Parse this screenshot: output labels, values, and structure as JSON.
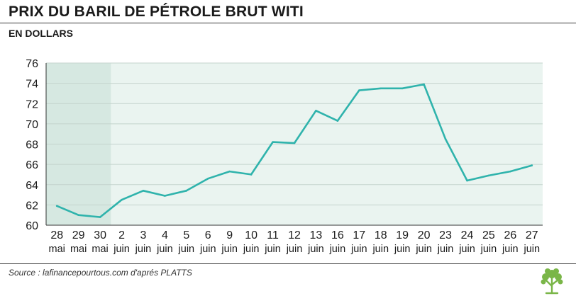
{
  "header": {
    "title": "PRIX DU BARIL DE PÉTROLE BRUT WITI",
    "subtitle": "EN DOLLARS"
  },
  "footer": {
    "source": "Source : lafinancepourtous.com d'aprés PLATTS"
  },
  "colors": {
    "line": "#2fb3ac",
    "plot_background": "#eaf4f0",
    "highlight_background": "#d6e8e1",
    "grid": "#c4d3cd"
  },
  "logo_icon": "tree-icon",
  "chart_data": {
    "type": "line",
    "title": "PRIX DU BARIL DE PÉTROLE BRUT WITI",
    "subtitle": "EN DOLLARS",
    "xlabel": "",
    "ylabel": "",
    "ylim": [
      60,
      76
    ],
    "yticks": [
      60,
      62,
      64,
      66,
      68,
      70,
      72,
      74,
      76
    ],
    "grid": true,
    "highlight_categories": [
      0,
      2
    ],
    "categories": [
      {
        "day": "28",
        "month": "mai"
      },
      {
        "day": "29",
        "month": "mai"
      },
      {
        "day": "30",
        "month": "mai"
      },
      {
        "day": "2",
        "month": "juin"
      },
      {
        "day": "3",
        "month": "juin"
      },
      {
        "day": "4",
        "month": "juin"
      },
      {
        "day": "5",
        "month": "juin"
      },
      {
        "day": "6",
        "month": "juin"
      },
      {
        "day": "9",
        "month": "juin"
      },
      {
        "day": "10",
        "month": "juin"
      },
      {
        "day": "11",
        "month": "juin"
      },
      {
        "day": "12",
        "month": "juin"
      },
      {
        "day": "13",
        "month": "juin"
      },
      {
        "day": "16",
        "month": "juin"
      },
      {
        "day": "17",
        "month": "juin"
      },
      {
        "day": "18",
        "month": "juin"
      },
      {
        "day": "19",
        "month": "juin"
      },
      {
        "day": "20",
        "month": "juin"
      },
      {
        "day": "23",
        "month": "juin"
      },
      {
        "day": "24",
        "month": "juin"
      },
      {
        "day": "25",
        "month": "juin"
      },
      {
        "day": "26",
        "month": "juin"
      },
      {
        "day": "27",
        "month": "juin"
      }
    ],
    "values": [
      61.9,
      61.0,
      60.8,
      62.5,
      63.4,
      62.9,
      63.4,
      64.6,
      65.3,
      65.0,
      68.2,
      68.1,
      71.3,
      70.3,
      73.3,
      73.5,
      73.5,
      73.9,
      68.5,
      64.4,
      64.9,
      65.3,
      65.9
    ]
  }
}
